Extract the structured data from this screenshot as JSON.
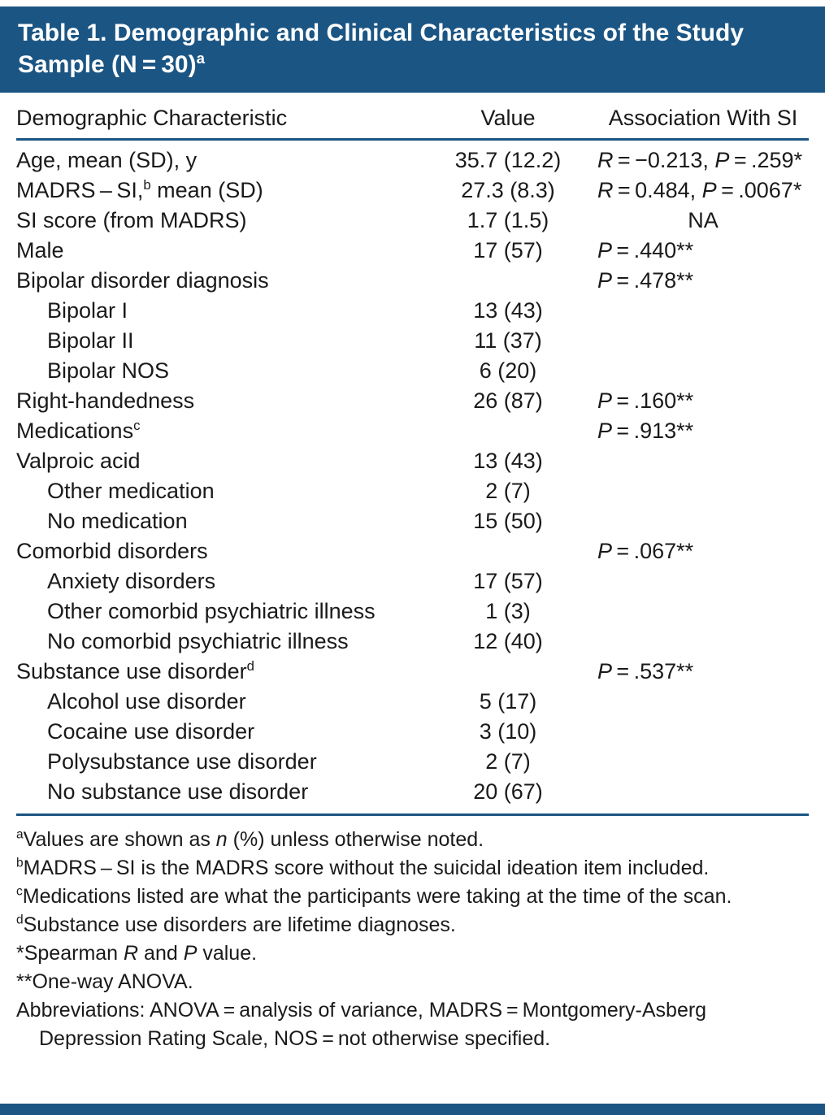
{
  "theme": {
    "accent": "#1b5583",
    "text_color": "#1a1a1a",
    "background": "#ffffff"
  },
  "table": {
    "title": [
      {
        "text": "Table 1. Demographic and Clinical Characteristics of the Study Sample (N = 30)"
      },
      {
        "text": "a",
        "sup": true
      }
    ],
    "columns": [
      "Demographic Characteristic",
      "Value",
      "Association With SI"
    ],
    "rows": [
      {
        "label": [
          {
            "text": "Age, mean (SD), y"
          }
        ],
        "indent": false,
        "value": "35.7 (12.2)",
        "assoc": [
          {
            "text": "R",
            "i": true
          },
          {
            "text": " = −0.213, "
          },
          {
            "text": "P",
            "i": true
          },
          {
            "text": " = .259*"
          }
        ]
      },
      {
        "label": [
          {
            "text": "MADRS – SI,"
          },
          {
            "text": "b",
            "sup": true
          },
          {
            "text": " mean (SD)"
          }
        ],
        "indent": false,
        "value": "27.3 (8.3)",
        "assoc": [
          {
            "text": "R",
            "i": true
          },
          {
            "text": " = 0.484, "
          },
          {
            "text": "P",
            "i": true
          },
          {
            "text": " = .0067*"
          }
        ]
      },
      {
        "label": [
          {
            "text": "SI score (from MADRS)"
          }
        ],
        "indent": false,
        "value": "1.7 (1.5)",
        "assoc": [
          {
            "text": "NA"
          }
        ],
        "assoc_center": true
      },
      {
        "label": [
          {
            "text": "Male"
          }
        ],
        "indent": false,
        "value": "17 (57)",
        "assoc": [
          {
            "text": "P",
            "i": true
          },
          {
            "text": " = .440**"
          }
        ]
      },
      {
        "label": [
          {
            "text": "Bipolar disorder diagnosis"
          }
        ],
        "indent": false,
        "value": "",
        "assoc": [
          {
            "text": "P",
            "i": true
          },
          {
            "text": " = .478**"
          }
        ]
      },
      {
        "label": [
          {
            "text": "Bipolar I"
          }
        ],
        "indent": true,
        "value": "13 (43)",
        "assoc": []
      },
      {
        "label": [
          {
            "text": "Bipolar II"
          }
        ],
        "indent": true,
        "value": "11 (37)",
        "assoc": []
      },
      {
        "label": [
          {
            "text": "Bipolar NOS"
          }
        ],
        "indent": true,
        "value": "6 (20)",
        "assoc": []
      },
      {
        "label": [
          {
            "text": "Right-handedness"
          }
        ],
        "indent": false,
        "value": "26 (87)",
        "assoc": [
          {
            "text": "P",
            "i": true
          },
          {
            "text": " = .160**"
          }
        ]
      },
      {
        "label": [
          {
            "text": "Medications"
          },
          {
            "text": "c",
            "sup": true
          }
        ],
        "indent": false,
        "value": "",
        "assoc": [
          {
            "text": "P",
            "i": true
          },
          {
            "text": " = .913**"
          }
        ]
      },
      {
        "label": [
          {
            "text": "Valproic acid"
          }
        ],
        "indent": false,
        "value": "13 (43)",
        "assoc": []
      },
      {
        "label": [
          {
            "text": "Other medication"
          }
        ],
        "indent": true,
        "value": "2 (7)",
        "assoc": []
      },
      {
        "label": [
          {
            "text": "No medication"
          }
        ],
        "indent": true,
        "value": "15 (50)",
        "assoc": []
      },
      {
        "label": [
          {
            "text": "Comorbid disorders"
          }
        ],
        "indent": false,
        "value": "",
        "assoc": [
          {
            "text": "P",
            "i": true
          },
          {
            "text": " = .067**"
          }
        ]
      },
      {
        "label": [
          {
            "text": "Anxiety disorders"
          }
        ],
        "indent": true,
        "value": "17 (57)",
        "assoc": []
      },
      {
        "label": [
          {
            "text": "Other comorbid psychiatric illness"
          }
        ],
        "indent": true,
        "value": "1 (3)",
        "assoc": []
      },
      {
        "label": [
          {
            "text": "No comorbid psychiatric illness"
          }
        ],
        "indent": true,
        "value": "12 (40)",
        "assoc": []
      },
      {
        "label": [
          {
            "text": "Substance use disorder"
          },
          {
            "text": "d",
            "sup": true
          }
        ],
        "indent": false,
        "value": "",
        "assoc": [
          {
            "text": "P",
            "i": true
          },
          {
            "text": " = .537**"
          }
        ]
      },
      {
        "label": [
          {
            "text": "Alcohol use disorder"
          }
        ],
        "indent": true,
        "value": "5 (17)",
        "assoc": []
      },
      {
        "label": [
          {
            "text": "Cocaine use disorder"
          }
        ],
        "indent": true,
        "value": "3 (10)",
        "assoc": []
      },
      {
        "label": [
          {
            "text": "Polysubstance use disorder"
          }
        ],
        "indent": true,
        "value": "2 (7)",
        "assoc": []
      },
      {
        "label": [
          {
            "text": "No substance use disorder"
          }
        ],
        "indent": true,
        "value": "20 (67)",
        "assoc": []
      }
    ],
    "footnotes": [
      [
        {
          "text": "a",
          "sup": true
        },
        {
          "text": "Values are shown as "
        },
        {
          "text": "n",
          "i": true
        },
        {
          "text": " (%) unless otherwise noted."
        }
      ],
      [
        {
          "text": "b",
          "sup": true
        },
        {
          "text": "MADRS – SI is the MADRS score without the suicidal ideation item included."
        }
      ],
      [
        {
          "text": "c",
          "sup": true
        },
        {
          "text": "Medications listed are what the participants were taking at the time of the scan."
        }
      ],
      [
        {
          "text": "d",
          "sup": true
        },
        {
          "text": "Substance use disorders are lifetime diagnoses."
        }
      ],
      [
        {
          "text": "*Spearman "
        },
        {
          "text": "R",
          "i": true
        },
        {
          "text": " and "
        },
        {
          "text": "P",
          "i": true
        },
        {
          "text": " value."
        }
      ],
      [
        {
          "text": "**One-way ANOVA."
        }
      ],
      [
        {
          "text": "Abbreviations: ANOVA = analysis of variance, MADRS = Montgomery-Asberg Depression Rating Scale, NOS = not otherwise specified."
        }
      ]
    ]
  }
}
